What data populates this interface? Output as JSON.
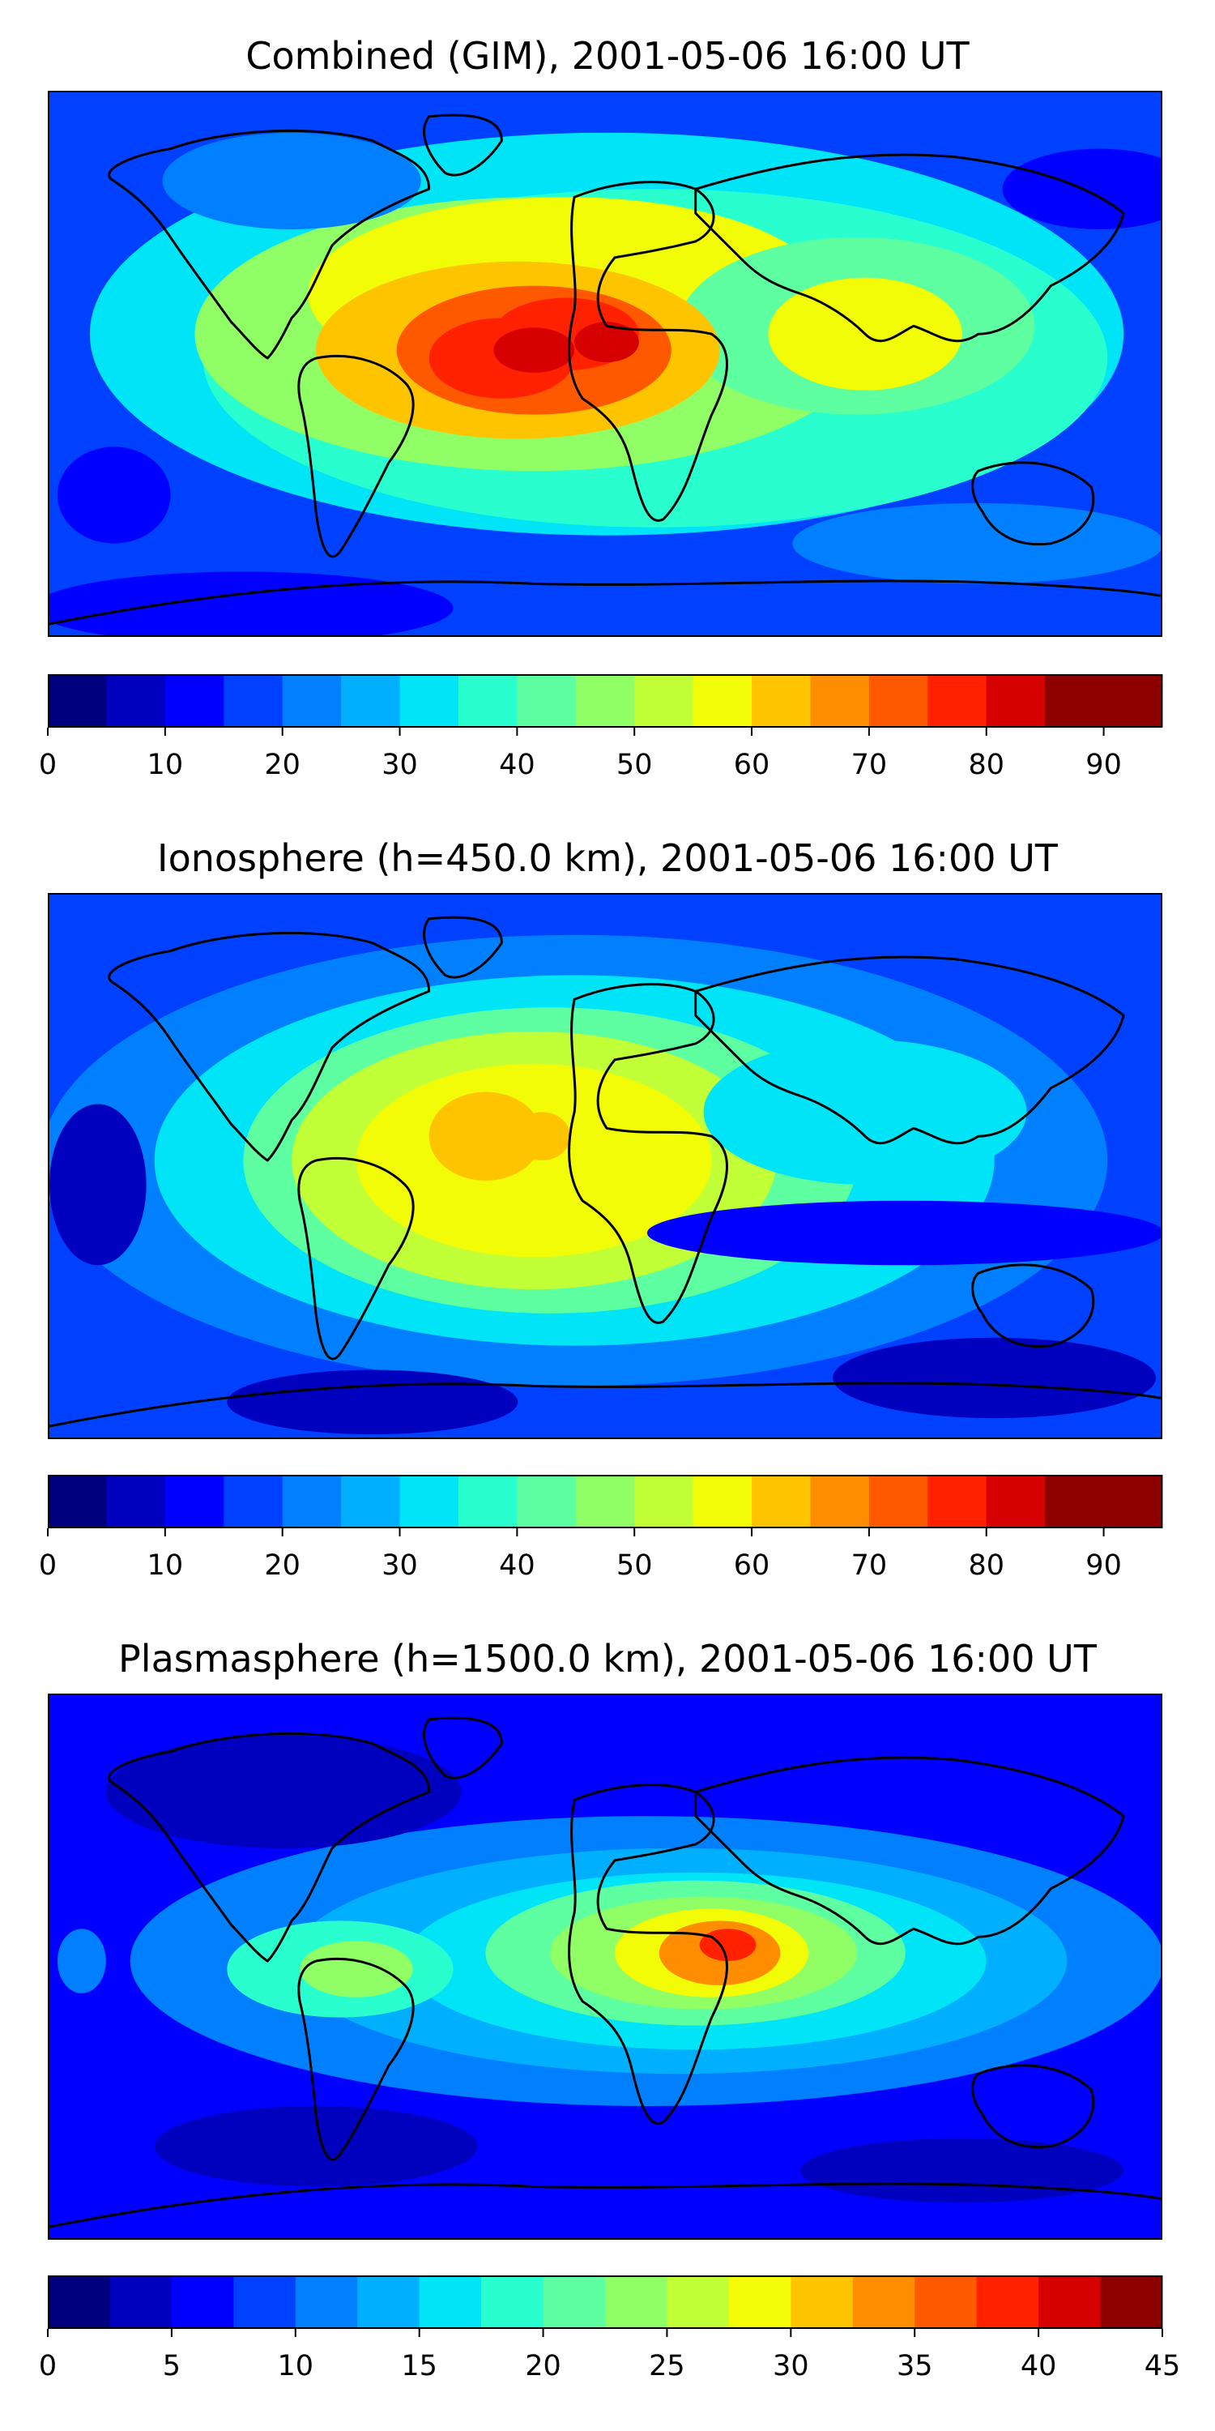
{
  "chart_data": [
    {
      "type": "heatmap",
      "title": "Combined (GIM), 2001-05-06 16:00 UT",
      "colorbar": {
        "min": 0,
        "max": 95,
        "step": 5,
        "ticks": [
          "0",
          "10",
          "20",
          "30",
          "40",
          "50",
          "60",
          "70",
          "80",
          "90"
        ],
        "tick_values": [
          0,
          10,
          20,
          30,
          40,
          50,
          60,
          70,
          80,
          90
        ]
      },
      "peak_value": 88,
      "peak_location": "South America / equatorial Atlantic",
      "secondary_peak": "South Asia"
    },
    {
      "type": "heatmap",
      "title": "Ionosphere  (h=450.0 km), 2001-05-06 16:00 UT",
      "colorbar": {
        "min": 0,
        "max": 95,
        "step": 5,
        "ticks": [
          "0",
          "10",
          "20",
          "30",
          "40",
          "50",
          "60",
          "70",
          "80",
          "90"
        ],
        "tick_values": [
          0,
          10,
          20,
          30,
          40,
          50,
          60,
          70,
          80,
          90
        ]
      },
      "peak_value": 70,
      "peak_location": "South America / equatorial Atlantic"
    },
    {
      "type": "heatmap",
      "title": "Plasmasphere (h=1500.0 km), 2001-05-06 16:00 UT",
      "colorbar": {
        "min": 0,
        "max": 45,
        "step": 2.5,
        "ticks": [
          "0",
          "5",
          "10",
          "15",
          "20",
          "25",
          "30",
          "35",
          "40",
          "45"
        ],
        "tick_values": [
          0,
          5,
          10,
          15,
          20,
          25,
          30,
          35,
          40,
          45
        ]
      },
      "peak_value": 37,
      "peak_location": "East Africa"
    }
  ],
  "colormap": [
    "#00007f",
    "#0000bf",
    "#0000ff",
    "#0040ff",
    "#0080ff",
    "#00b0ff",
    "#00e4f8",
    "#29ffce",
    "#5dffa0",
    "#90ff66",
    "#c1ff36",
    "#f1fc06",
    "#ffc400",
    "#ff8d00",
    "#ff5900",
    "#ff2100",
    "#d70000",
    "#8e0000"
  ],
  "coastline_color": "#000000"
}
